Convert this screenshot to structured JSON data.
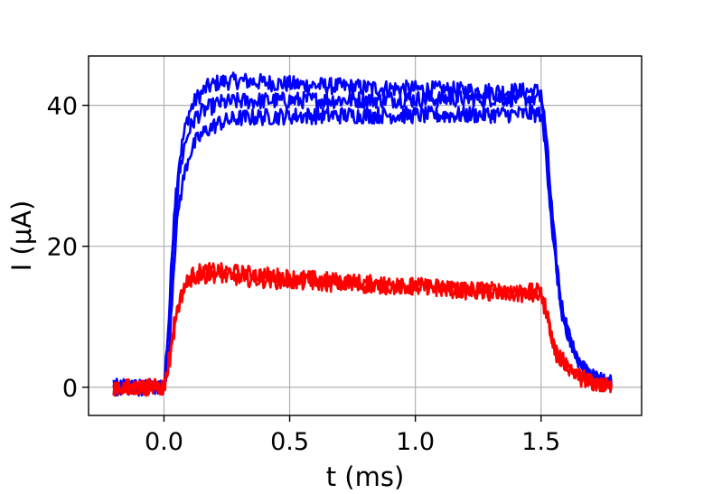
{
  "chart_data": {
    "type": "line",
    "xlabel": "t (ms)",
    "ylabel": "I (μA)",
    "xlim": [
      -0.3,
      1.9
    ],
    "ylim": [
      -4,
      47
    ],
    "xticks": [
      0.0,
      0.5,
      1.0,
      1.5
    ],
    "xtick_labels": [
      "0.0",
      "0.5",
      "1.0",
      "1.5"
    ],
    "yticks": [
      0,
      20,
      40
    ],
    "ytick_labels": [
      "0",
      "20",
      "40"
    ],
    "grid": true,
    "legend": "none",
    "colors": {
      "blue": "#0000ff",
      "red": "#ff0000"
    },
    "series": [
      {
        "color": "#0000ff",
        "x": [
          -0.2,
          0.0,
          0.02,
          0.04,
          0.06,
          0.08,
          0.1,
          0.13,
          0.17,
          0.22,
          0.3,
          0.5,
          0.8,
          1.1,
          1.3,
          1.5,
          1.52,
          1.55,
          1.58,
          1.62,
          1.66,
          1.7,
          1.75,
          1.78
        ],
        "y": [
          0,
          0,
          10,
          25,
          32,
          36,
          39,
          41,
          42.5,
          43.3,
          43.5,
          43,
          42.5,
          42.2,
          42,
          42,
          36,
          22,
          12,
          6,
          3,
          1.5,
          0.8,
          0.5
        ]
      },
      {
        "color": "#0000ff",
        "x": [
          -0.2,
          0.0,
          0.02,
          0.04,
          0.06,
          0.08,
          0.1,
          0.13,
          0.17,
          0.22,
          0.3,
          0.5,
          0.8,
          1.1,
          1.3,
          1.5,
          1.52,
          1.55,
          1.58,
          1.62,
          1.66,
          1.7,
          1.75,
          1.78
        ],
        "y": [
          0,
          0,
          8,
          22,
          30,
          34,
          36.5,
          38.5,
          39.5,
          40.3,
          40.6,
          40.7,
          40.8,
          40.9,
          41,
          41,
          35,
          21,
          11,
          6,
          3,
          1.5,
          0.8,
          0.5
        ]
      },
      {
        "color": "#0000ff",
        "x": [
          -0.2,
          0.0,
          0.02,
          0.04,
          0.06,
          0.08,
          0.1,
          0.13,
          0.17,
          0.22,
          0.3,
          0.5,
          0.8,
          1.1,
          1.3,
          1.5,
          1.52,
          1.55,
          1.58,
          1.62,
          1.66,
          1.7,
          1.75,
          1.78
        ],
        "y": [
          0,
          0,
          5,
          18,
          26,
          30,
          33,
          35,
          36.5,
          37.5,
          38.2,
          38.5,
          38.6,
          38.6,
          38.7,
          38.8,
          33,
          20,
          11,
          6,
          3,
          1.5,
          0.8,
          0.5
        ]
      },
      {
        "color": "#ff0000",
        "x": [
          -0.2,
          0.0,
          0.02,
          0.04,
          0.06,
          0.08,
          0.1,
          0.13,
          0.2,
          0.3,
          0.5,
          0.8,
          1.1,
          1.3,
          1.5,
          1.52,
          1.55,
          1.58,
          1.62,
          1.66,
          1.7,
          1.75,
          1.78
        ],
        "y": [
          0,
          0,
          4,
          9,
          12,
          14,
          15.5,
          16.3,
          16.5,
          16.2,
          15.6,
          14.8,
          14.2,
          13.8,
          13.5,
          11,
          6,
          4,
          2.5,
          1.5,
          0.8,
          0.3,
          0.2
        ]
      },
      {
        "color": "#ff0000",
        "x": [
          -0.2,
          0.0,
          0.02,
          0.04,
          0.06,
          0.08,
          0.1,
          0.13,
          0.2,
          0.3,
          0.5,
          0.8,
          1.1,
          1.3,
          1.5,
          1.52,
          1.55,
          1.58,
          1.62,
          1.66,
          1.7,
          1.75,
          1.78
        ],
        "y": [
          0,
          0,
          3,
          8,
          11.5,
          13.5,
          15,
          15.8,
          16,
          15.5,
          15,
          14.5,
          14,
          13.3,
          13,
          10.5,
          5.5,
          3.5,
          2,
          1.2,
          0.6,
          0.2,
          0.1
        ]
      }
    ]
  }
}
